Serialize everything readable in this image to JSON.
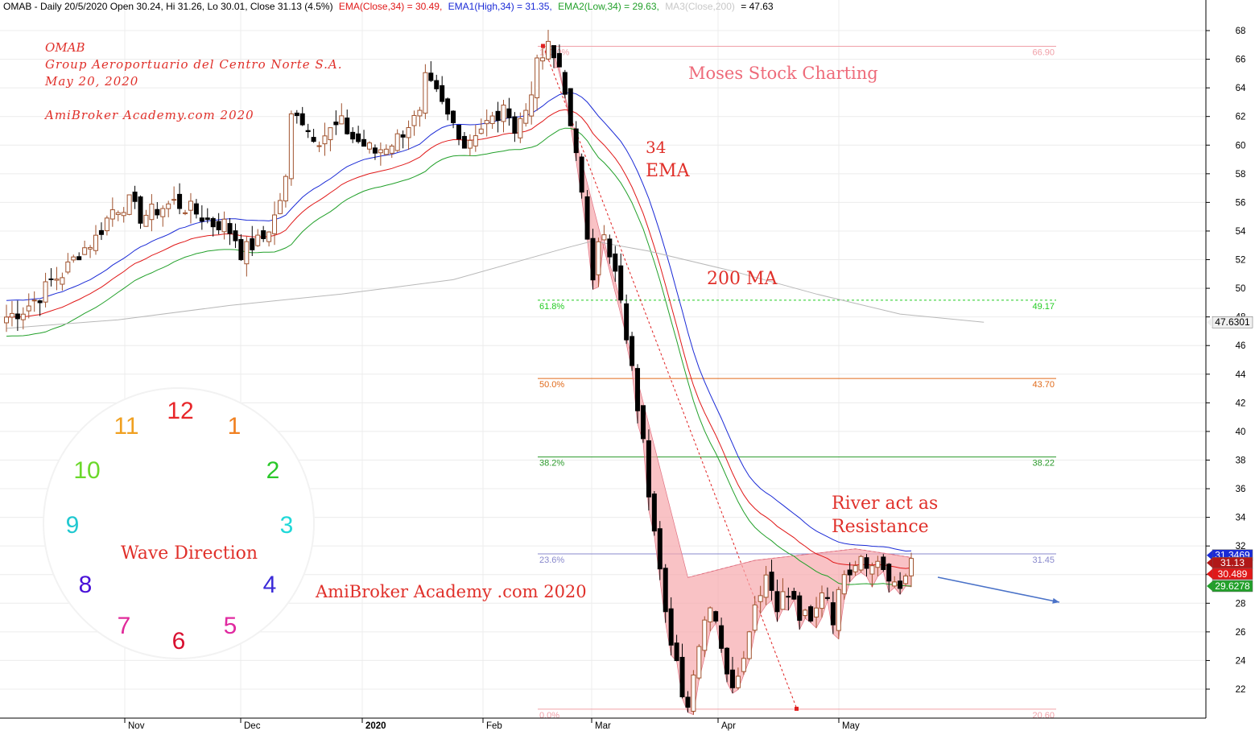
{
  "chart_data": {
    "type": "candlestick",
    "header": {
      "symbol_line": "OMAB - Daily 20/5/2020 Open 30.24, Hi 31.26, Lo 30.01, Close 31.13 (4.5%)",
      "ema": "EMA(Close,34) = 30.49,",
      "ema1": "EMA1(High,34) = 31.35,",
      "ema2": "EMA2(Low,34) = 29.63,",
      "ma3": "MA3(Close,200)",
      "ma3_val": "= 47.63"
    },
    "ylim": [
      20,
      69
    ],
    "y_ticks": [
      "22",
      "24",
      "26",
      "28",
      "30",
      "32",
      "34",
      "36",
      "38",
      "40",
      "42",
      "44",
      "46",
      "48",
      "50",
      "52",
      "54",
      "56",
      "58",
      "60",
      "62",
      "64",
      "66",
      "68"
    ],
    "x_ticks": [
      "Nov",
      "Dec",
      "2020",
      "Feb",
      "Mar",
      "Apr",
      "May"
    ],
    "notes": {
      "title": "OMAB",
      "company": "Group Aeroportuario del Centro Norte S.A.",
      "date": "May 20, 2020",
      "site": "AmiBroker Academy.com  2020",
      "brand": "Moses Stock Charting",
      "ema34_a": "34",
      "ema34_b": "EMA",
      "ma200": "200 MA",
      "river_a": "River act as",
      "river_b": "Resistance",
      "wave": "Wave Direction",
      "academy": "AmiBroker Academy .com  2020"
    },
    "fibonacci": {
      "high": 66.9,
      "low": 20.6,
      "levels": [
        {
          "pct": "100.0%",
          "value": "66.90",
          "price": 66.9,
          "color": "#f0a0a8"
        },
        {
          "pct": "61.8%",
          "value": "49.17",
          "price": 49.17,
          "color": "#22cc22"
        },
        {
          "pct": "50.0%",
          "value": "43.70",
          "price": 43.7,
          "color": "#e06a1a"
        },
        {
          "pct": "38.2%",
          "value": "38.22",
          "price": 38.22,
          "color": "#2a9a2a"
        },
        {
          "pct": "23.6%",
          "value": "31.45",
          "price": 31.45,
          "color": "#8888cc"
        },
        {
          "pct": "0.0%",
          "value": "20.60",
          "price": 20.6,
          "color": "#f0a0a8"
        }
      ]
    },
    "price_tags": [
      {
        "label": "47.6301",
        "price": 47.63,
        "bg": "#f0f0f0",
        "fg": "#000000"
      },
      {
        "label": "31.3469",
        "price": 31.35,
        "bg": "#1a2ad6",
        "fg": "#ffffff"
      },
      {
        "label": "31.13",
        "price": 30.82,
        "bg": "#b01818",
        "fg": "#ffffff"
      },
      {
        "label": "30.489",
        "price": 30.05,
        "bg": "#e01818",
        "fg": "#ffffff"
      },
      {
        "label": "29.6278",
        "price": 29.2,
        "bg": "#22a02a",
        "fg": "#ffffff"
      }
    ],
    "clock": [
      "12",
      "1",
      "2",
      "3",
      "4",
      "5",
      "6",
      "7",
      "8",
      "9",
      "10",
      "11"
    ],
    "series": [
      {
        "name": "EMA(Close,34)",
        "color": "#e01818"
      },
      {
        "name": "EMA1(High,34)",
        "color": "#1a2ad6"
      },
      {
        "name": "EMA2(Low,34)",
        "color": "#22a02a"
      },
      {
        "name": "MA3(Close,200)",
        "color": "#b8b8b8"
      }
    ],
    "close_path": [
      [
        0,
        48.0
      ],
      [
        3,
        48.5
      ],
      [
        6,
        49.5
      ],
      [
        8,
        50.5
      ],
      [
        10,
        51.0
      ],
      [
        13,
        52.5
      ],
      [
        16,
        53.5
      ],
      [
        19,
        55.5
      ],
      [
        22,
        56.0
      ],
      [
        24,
        55.0
      ],
      [
        27,
        55.5
      ],
      [
        30,
        56.0
      ],
      [
        33,
        55.5
      ],
      [
        35,
        55.0
      ],
      [
        37,
        54.5
      ],
      [
        39,
        54.5
      ],
      [
        41,
        53.5
      ],
      [
        42,
        52.5
      ],
      [
        44,
        53.0
      ],
      [
        46,
        53.5
      ],
      [
        48,
        55.0
      ],
      [
        50,
        57.5
      ],
      [
        51,
        62.0
      ],
      [
        52,
        62.5
      ],
      [
        54,
        61.0
      ],
      [
        56,
        60.5
      ],
      [
        58,
        61.0
      ],
      [
        60,
        61.5
      ],
      [
        62,
        60.5
      ],
      [
        64,
        60.0
      ],
      [
        66,
        59.5
      ],
      [
        68,
        60.0
      ],
      [
        70,
        60.5
      ],
      [
        72,
        61.5
      ],
      [
        74,
        62.0
      ],
      [
        75,
        64.5
      ],
      [
        77,
        63.5
      ],
      [
        79,
        62.0
      ],
      [
        81,
        61.0
      ],
      [
        82,
        60.0
      ],
      [
        84,
        61.0
      ],
      [
        86,
        61.5
      ],
      [
        88,
        62.0
      ],
      [
        90,
        62.5
      ],
      [
        91,
        61.0
      ],
      [
        93,
        62.5
      ],
      [
        95,
        65.5
      ],
      [
        97,
        66.8
      ],
      [
        98,
        66.0
      ],
      [
        99,
        65.5
      ],
      [
        100,
        64.0
      ],
      [
        101,
        61.0
      ],
      [
        103,
        57.0
      ],
      [
        104,
        54.0
      ],
      [
        105,
        51.0
      ],
      [
        106,
        53.0
      ],
      [
        107,
        53.5
      ],
      [
        108,
        52.0
      ],
      [
        110,
        49.5
      ],
      [
        111,
        46.0
      ],
      [
        112,
        45.0
      ],
      [
        113,
        42.0
      ],
      [
        114,
        40.0
      ],
      [
        115,
        36.0
      ],
      [
        116,
        33.0
      ],
      [
        117,
        30.0
      ],
      [
        118,
        27.0
      ],
      [
        119,
        25.5
      ],
      [
        120,
        24.0
      ],
      [
        121,
        22.0
      ],
      [
        122,
        21.0
      ],
      [
        123,
        23.0
      ],
      [
        124,
        25.5
      ],
      [
        125,
        27.0
      ],
      [
        126,
        28.0
      ],
      [
        127,
        27.0
      ],
      [
        128,
        24.5
      ],
      [
        129,
        23.5
      ],
      [
        130,
        22.5
      ],
      [
        131,
        23.5
      ],
      [
        132,
        24.0
      ],
      [
        133,
        26.5
      ],
      [
        134,
        28.0
      ],
      [
        135,
        29.0
      ],
      [
        136,
        30.0
      ],
      [
        137,
        29.0
      ],
      [
        138,
        28.0
      ],
      [
        139,
        28.5
      ],
      [
        140,
        28.5
      ],
      [
        141,
        28.0
      ],
      [
        142,
        27.0
      ],
      [
        143,
        27.0
      ],
      [
        144,
        26.5
      ],
      [
        145,
        27.5
      ],
      [
        146,
        29.0
      ],
      [
        147,
        28.5
      ],
      [
        148,
        27.0
      ],
      [
        149,
        28.5
      ],
      [
        150,
        30.5
      ],
      [
        151,
        30.5
      ],
      [
        152,
        31.0
      ],
      [
        153,
        31.5
      ],
      [
        154,
        31.0
      ],
      [
        155,
        30.5
      ],
      [
        156,
        31.0
      ],
      [
        157,
        30.5
      ],
      [
        158,
        29.5
      ],
      [
        159,
        29.0
      ],
      [
        160,
        29.0
      ],
      [
        161,
        30.0
      ],
      [
        162,
        31.13
      ]
    ],
    "wick_noise": 0.6
  }
}
